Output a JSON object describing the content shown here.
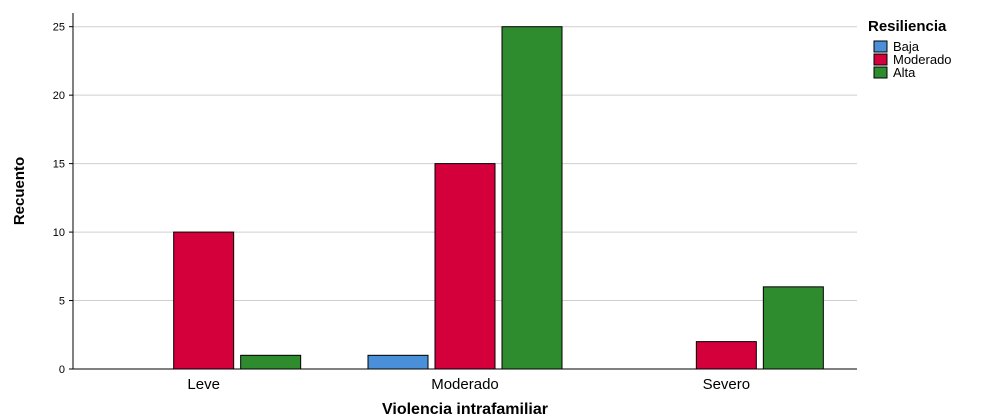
{
  "chart_data": {
    "type": "bar",
    "xlabel": "Violencia intrafamiliar",
    "ylabel": "Recuento",
    "categories": [
      "Leve",
      "Moderado",
      "Severo"
    ],
    "ylim": [
      0,
      26
    ],
    "yticks": [
      0,
      5,
      10,
      15,
      20,
      25
    ],
    "grid": true,
    "legend": {
      "title": "Resiliencia",
      "position": "top-right"
    },
    "series": [
      {
        "name": "Baja",
        "color": "#4a90d9",
        "values": [
          0,
          1,
          0
        ]
      },
      {
        "name": "Moderado",
        "color": "#d4003b",
        "values": [
          10,
          15,
          2
        ]
      },
      {
        "name": "Alta",
        "color": "#2e8b2e",
        "values": [
          1,
          25,
          6
        ]
      }
    ]
  }
}
